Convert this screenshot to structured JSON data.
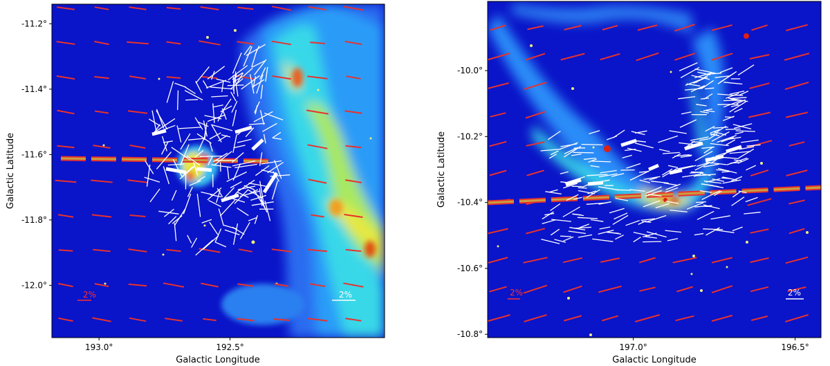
{
  "chart_data": [
    {
      "type": "scatter",
      "title": "",
      "xlabel": "Galactic Longitude",
      "ylabel": "Galactic Latitude",
      "xlim": [
        193.18,
        191.91
      ],
      "ylim": [
        -12.16,
        -11.14
      ],
      "x_ticks": [
        {
          "value": 193.0,
          "label": "193.0°"
        },
        {
          "value": 192.5,
          "label": "192.5°"
        }
      ],
      "y_ticks": [
        {
          "value": -11.2,
          "label": "-11.2°"
        },
        {
          "value": -11.4,
          "label": "-11.4°"
        },
        {
          "value": -11.6,
          "label": "-11.6°"
        },
        {
          "value": -11.8,
          "label": "-11.8°"
        },
        {
          "value": -12.0,
          "label": "-12.0°"
        }
      ],
      "scale_bars": [
        {
          "label": "2%",
          "color": "#ff3030",
          "lon": 193.05,
          "lat": -12.05
        },
        {
          "label": "2%",
          "color": "#ffffff",
          "lon": 192.03,
          "lat": -12.05
        }
      ],
      "background": "dust emission intensity map (blue low to red high)",
      "polarization_vectors": [
        {
          "name": "large-scale (red)",
          "color": "#e8322d",
          "typical_angle_deg": -8
        },
        {
          "name": "local (white)",
          "color": "#ffffff",
          "typical_angle_deg": 45
        }
      ],
      "highlight_band": {
        "color": "#c8a040",
        "lat_at_left": -11.625,
        "lat_at_right": -11.66
      },
      "grid": false
    },
    {
      "type": "scatter",
      "title": "",
      "xlabel": "Galactic Longitude",
      "ylabel": "Galactic Latitude",
      "xlim": [
        197.45,
        196.42
      ],
      "ylim": [
        -10.81,
        -9.79
      ],
      "x_ticks": [
        {
          "value": 197.0,
          "label": "197.0°"
        },
        {
          "value": 196.5,
          "label": "196.5°"
        }
      ],
      "y_ticks": [
        {
          "value": -10.0,
          "label": "-10.0°"
        },
        {
          "value": -10.2,
          "label": "-10.2°"
        },
        {
          "value": -10.4,
          "label": "-10.4°"
        },
        {
          "value": -10.6,
          "label": "-10.6°"
        },
        {
          "value": -10.8,
          "label": "-10.8°"
        }
      ],
      "scale_bars": [
        {
          "label": "2%",
          "color": "#ff3030",
          "lon": 197.37,
          "lat": -10.68
        },
        {
          "label": "2%",
          "color": "#ffffff",
          "lon": 196.51,
          "lat": -10.68
        }
      ],
      "background": "dust emission intensity map (blue low to red high)",
      "polarization_vectors": [
        {
          "name": "large-scale (red)",
          "color": "#e8322d",
          "typical_angle_deg": 15
        },
        {
          "name": "local (white)",
          "color": "#ffffff",
          "typical_angle_deg": 10
        }
      ],
      "highlight_band": {
        "color": "#c8a040",
        "lat_at_left": -10.41,
        "lat_at_right": -10.355
      },
      "grid": false
    }
  ],
  "colors": {
    "map_low": "#0a14c8",
    "map_mid": "#2a7cff",
    "map_cyan": "#38d8f0",
    "map_yellow": "#e8e840",
    "map_high": "#d82010",
    "red_vector": "#e8322d",
    "white_vector": "#ffffff"
  }
}
